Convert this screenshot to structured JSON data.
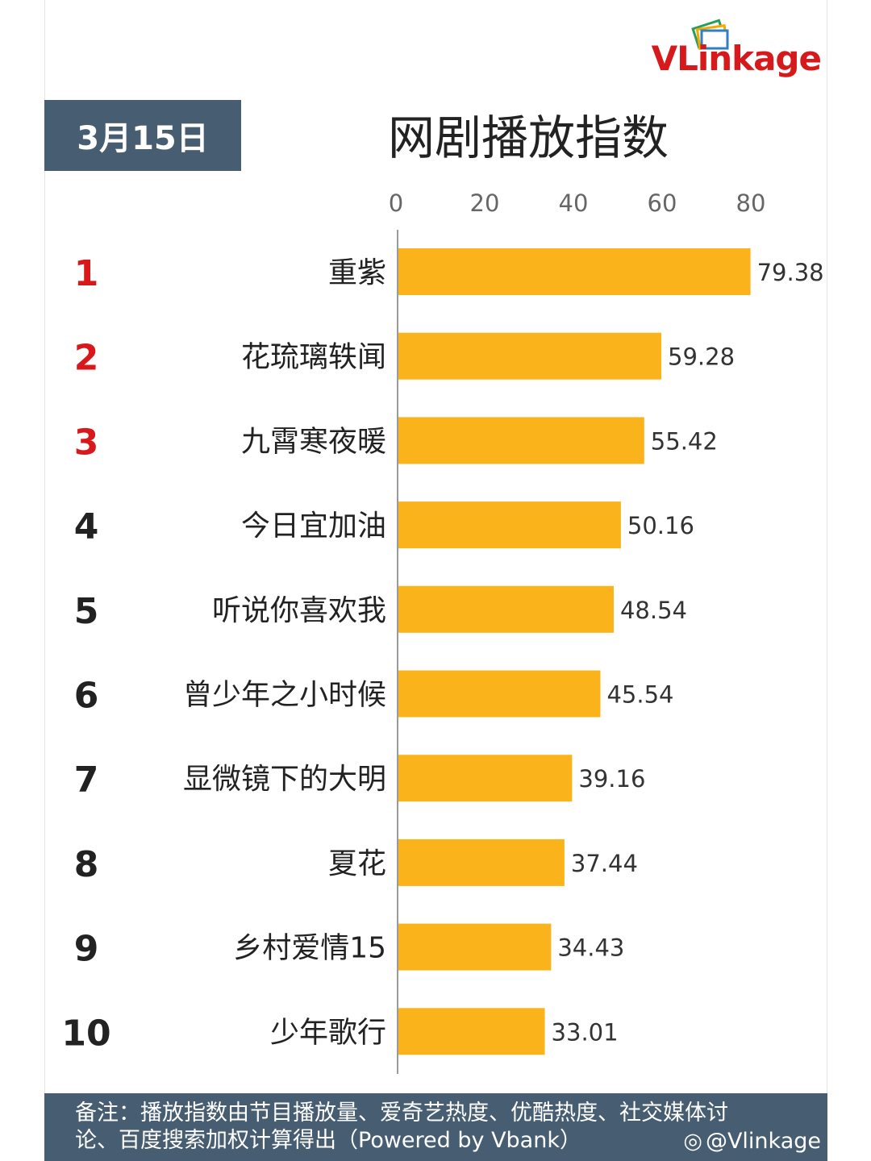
{
  "brand": {
    "logo_text_v": "VL",
    "logo_text_rest": "ink",
    "logo_text_end": "age"
  },
  "header": {
    "date": "3月15日",
    "title": "网剧播放指数"
  },
  "colors": {
    "bar": "#fbb31b",
    "rank_top": "#d7191c",
    "rank_rest": "#222222",
    "panel": "#475d71"
  },
  "chart_data": {
    "type": "bar",
    "orientation": "horizontal",
    "title": "网剧播放指数",
    "categories": [
      "重紫",
      "花琉璃轶闻",
      "九霄寒夜暖",
      "今日宜加油",
      "听说你喜欢我",
      "曾少年之小时候",
      "显微镜下的大明",
      "夏花",
      "乡村爱情15",
      "少年歌行"
    ],
    "ranks": [
      "1",
      "2",
      "3",
      "4",
      "5",
      "6",
      "7",
      "8",
      "9",
      "10"
    ],
    "values": [
      79.38,
      59.28,
      55.42,
      50.16,
      48.54,
      45.54,
      39.16,
      37.44,
      34.43,
      33.01
    ],
    "value_labels": [
      "79.38",
      "59.28",
      "55.42",
      "50.16",
      "48.54",
      "45.54",
      "39.16",
      "37.44",
      "34.43",
      "33.01"
    ],
    "xticks": [
      "0",
      "20",
      "40",
      "60",
      "80"
    ],
    "xlim": [
      0,
      80
    ],
    "grid": false,
    "legend": "none"
  },
  "footer": {
    "note": "备注：播放指数由节目播放量、爱奇艺热度、优酷热度、社交媒体讨论、百度搜索加权计算得出（Powered by Vbank）",
    "watermark": "@Vlinkage"
  }
}
